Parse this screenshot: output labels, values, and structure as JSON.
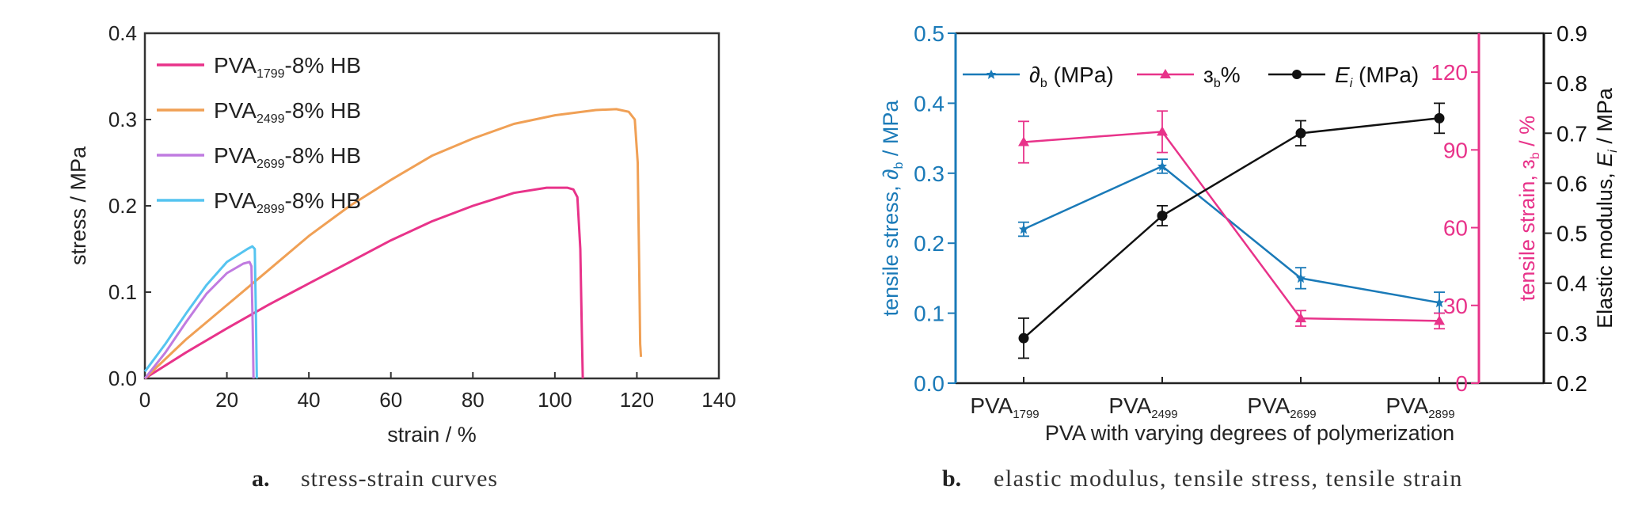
{
  "chart_data": [
    {
      "type": "line",
      "panel_label": "a.",
      "caption": "stress-strain curves",
      "xlabel": "strain / %",
      "ylabel": "stress / MPa",
      "xlim": [
        0,
        140
      ],
      "ylim": [
        0.0,
        0.4
      ],
      "xticks": [
        "0",
        "20",
        "40",
        "60",
        "80",
        "100",
        "120",
        "140"
      ],
      "yticks": [
        "0.0",
        "0.1",
        "0.2",
        "0.3",
        "0.4"
      ],
      "legend_position": "top-left",
      "series": [
        {
          "name_main": "PVA",
          "name_sub": "1799",
          "name_tail": "-8% HB",
          "color": "#e8338a",
          "x": [
            0,
            10,
            20,
            30,
            40,
            50,
            60,
            70,
            80,
            90,
            98,
            103,
            104.5,
            105.5,
            106.2,
            106.6,
            106.8
          ],
          "y": [
            0.0,
            0.03,
            0.058,
            0.085,
            0.11,
            0.135,
            0.16,
            0.182,
            0.2,
            0.215,
            0.221,
            0.221,
            0.219,
            0.21,
            0.15,
            0.05,
            0.0
          ]
        },
        {
          "name_main": "PVA",
          "name_sub": "2499",
          "name_tail": "-8% HB",
          "color": "#f0a055",
          "x": [
            0,
            10,
            20,
            30,
            40,
            50,
            60,
            70,
            80,
            90,
            100,
            110,
            115,
            118,
            119.5,
            120.2,
            120.6,
            120.8,
            121.0
          ],
          "y": [
            0.0,
            0.045,
            0.085,
            0.125,
            0.165,
            0.2,
            0.23,
            0.258,
            0.278,
            0.295,
            0.305,
            0.311,
            0.312,
            0.309,
            0.3,
            0.25,
            0.12,
            0.04,
            0.025
          ]
        },
        {
          "name_main": "PVA",
          "name_sub": "2699",
          "name_tail": "-8% HB",
          "color": "#c07be0",
          "x": [
            0,
            5,
            10,
            15,
            20,
            24,
            25.5,
            26.0,
            26.3,
            26.5
          ],
          "y": [
            0.0,
            0.03,
            0.065,
            0.098,
            0.122,
            0.133,
            0.135,
            0.13,
            0.06,
            0.0
          ]
        },
        {
          "name_main": "PVA",
          "name_sub": "2899",
          "name_tail": "-8% HB",
          "color": "#55c4f0",
          "x": [
            0,
            5,
            10,
            15,
            20,
            25,
            26.2,
            26.8,
            27.1,
            27.3
          ],
          "y": [
            0.008,
            0.04,
            0.075,
            0.108,
            0.135,
            0.15,
            0.153,
            0.15,
            0.07,
            0.0
          ]
        }
      ]
    },
    {
      "type": "line",
      "panel_label": "b.",
      "caption": "elastic modulus, tensile stress, tensile strain",
      "xlabel": "PVA with varying degrees of polymerization",
      "categories": [
        {
          "main": "PVA",
          "sub": "1799"
        },
        {
          "main": "PVA",
          "sub": "2499"
        },
        {
          "main": "PVA",
          "sub": "2699"
        },
        {
          "main": "PVA",
          "sub": "2899"
        }
      ],
      "axes": {
        "left": {
          "label_main": "tensile stress, ",
          "label_sym": "∂",
          "label_sub": "b",
          "label_tail": " / MPa",
          "ylim": [
            0.0,
            0.5
          ],
          "ticks": [
            "0.0",
            "0.1",
            "0.2",
            "0.3",
            "0.4",
            "0.5"
          ],
          "color": "#1a7ab8"
        },
        "right1": {
          "label_main": "tensile strain, ",
          "label_sym": "ɜ",
          "label_sub": "b",
          "label_tail": " / %",
          "ylim": [
            0,
            135
          ],
          "ticks": [
            "0",
            "30",
            "60",
            "90",
            "120"
          ],
          "color": "#e8338a"
        },
        "right2": {
          "label_main": "Elastic modulus, ",
          "label_sym": "E",
          "label_sub": "i",
          "label_tail": " / MPa",
          "ylim": [
            0.2,
            0.9
          ],
          "ticks": [
            "0.2",
            "0.3",
            "0.4",
            "0.5",
            "0.6",
            "0.7",
            "0.8",
            "0.9"
          ],
          "color": "#111111"
        }
      },
      "legend_position": "top",
      "series": [
        {
          "sym": "∂",
          "sub": "b",
          "unit": " (MPa)",
          "axis": "left",
          "color": "#1a7ab8",
          "marker": "star",
          "values": [
            0.22,
            0.31,
            0.15,
            0.115
          ],
          "errors": [
            0.01,
            0.01,
            0.015,
            0.015
          ]
        },
        {
          "sym": "ɜ",
          "sub": "b",
          "unit": "%",
          "axis": "right1",
          "color": "#e8338a",
          "marker": "triangle",
          "values": [
            93,
            97,
            25,
            24
          ],
          "errors": [
            8,
            8,
            3,
            3
          ]
        },
        {
          "sym": "E",
          "sub": "i",
          "unit": " (MPa)",
          "axis": "right2",
          "color": "#111111",
          "marker": "circle",
          "values": [
            0.29,
            0.535,
            0.7,
            0.73
          ],
          "errors": [
            0.04,
            0.02,
            0.025,
            0.03
          ]
        }
      ]
    }
  ]
}
